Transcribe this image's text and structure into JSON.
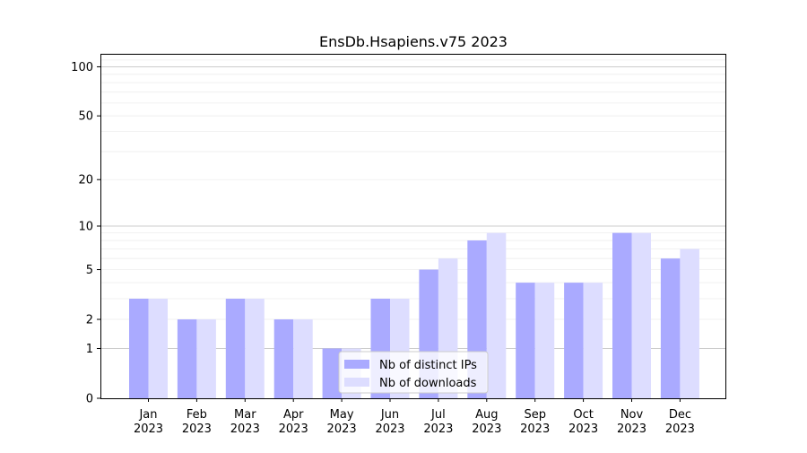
{
  "chart_data": {
    "type": "bar",
    "title": "EnsDb.Hsapiens.v75 2023",
    "xlabel": "",
    "ylabel": "",
    "y_scale": "log(1+y)",
    "ylim": [
      0,
      120
    ],
    "y_ticks": [
      0,
      1,
      2,
      5,
      10,
      20,
      50,
      100
    ],
    "grid": true,
    "legend_position": "bottom-center",
    "categories": [
      [
        "Jan",
        "2023"
      ],
      [
        "Feb",
        "2023"
      ],
      [
        "Mar",
        "2023"
      ],
      [
        "Apr",
        "2023"
      ],
      [
        "May",
        "2023"
      ],
      [
        "Jun",
        "2023"
      ],
      [
        "Jul",
        "2023"
      ],
      [
        "Aug",
        "2023"
      ],
      [
        "Sep",
        "2023"
      ],
      [
        "Oct",
        "2023"
      ],
      [
        "Nov",
        "2023"
      ],
      [
        "Dec",
        "2023"
      ]
    ],
    "series": [
      {
        "name": "Nb of distinct IPs",
        "color": "#aaaaff",
        "values": [
          3,
          2,
          3,
          2,
          1,
          3,
          5,
          8,
          4,
          4,
          9,
          6
        ]
      },
      {
        "name": "Nb of downloads",
        "color": "#ddddff",
        "values": [
          3,
          2,
          3,
          2,
          1,
          3,
          6,
          9,
          4,
          4,
          9,
          7
        ]
      }
    ]
  }
}
